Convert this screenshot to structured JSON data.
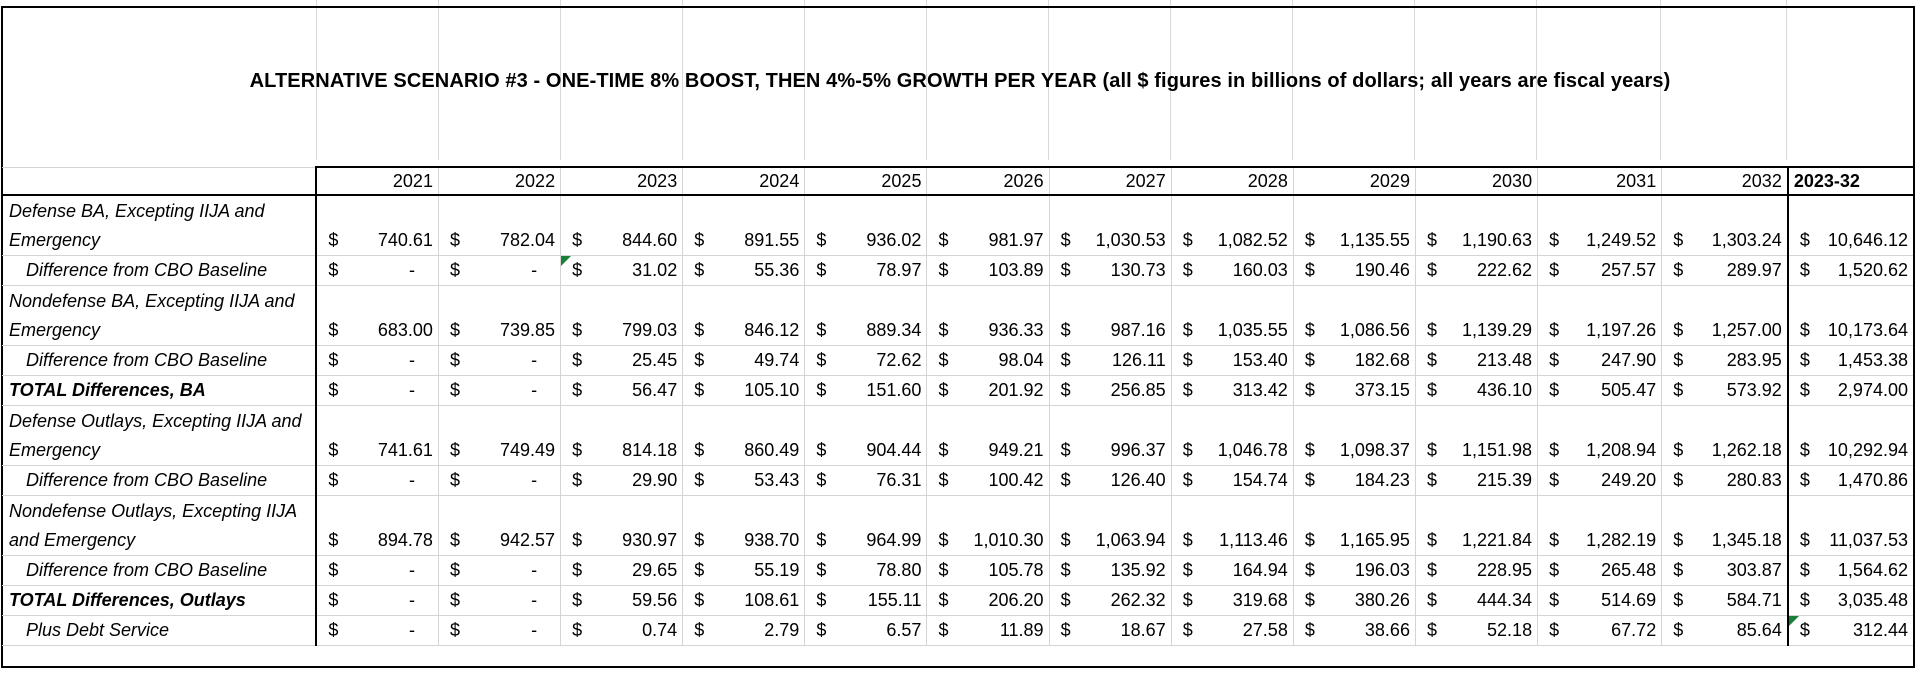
{
  "title": {
    "main": "ALTERNATIVE SCENARIO #3 - ONE-TIME 8% BOOST, THEN 4%-5% GROWTH PER YEAR",
    "note": "(all $ figures in billions of dollars; all years are fiscal years)"
  },
  "columns": [
    "2021",
    "2022",
    "2023",
    "2024",
    "2025",
    "2026",
    "2027",
    "2028",
    "2029",
    "2030",
    "2031",
    "2032",
    "2023-32"
  ],
  "currency_symbol": "$",
  "rows": [
    {
      "label": "Defense BA, Excepting IIJA and Emergency",
      "style": "main",
      "values": [
        "740.61",
        "782.04",
        "844.60",
        "891.55",
        "936.02",
        "981.97",
        "$ 1,030.53",
        "$ 1,082.52",
        "1,135.55",
        "1,190.63",
        "1,249.52",
        "$ 1,303.24",
        "$ 10,646.12"
      ]
    },
    {
      "label": "Difference from CBO Baseline",
      "style": "sub",
      "values": [
        "-",
        "-",
        "31.02",
        "55.36",
        "78.97",
        "103.89",
        "130.73",
        "160.03",
        "190.46",
        "222.62",
        "257.57",
        "289.97",
        "$ 1,520.62"
      ]
    },
    {
      "label": "Nondefense BA, Excepting IIJA and Emergency",
      "style": "main",
      "values": [
        "683.00",
        "739.85",
        "799.03",
        "846.12",
        "889.34",
        "936.33",
        "987.16",
        "$ 1,035.55",
        "1,086.56",
        "1,139.29",
        "1,197.26",
        "$ 1,257.00",
        "$ 10,173.64"
      ]
    },
    {
      "label": "Difference from CBO Baseline",
      "style": "sub",
      "values": [
        "-",
        "-",
        "25.45",
        "49.74",
        "72.62",
        "98.04",
        "126.11",
        "153.40",
        "182.68",
        "213.48",
        "247.90",
        "283.95",
        "$ 1,453.38"
      ]
    },
    {
      "label": "TOTAL Differences, BA",
      "style": "bold",
      "values": [
        "-",
        "-",
        "56.47",
        "105.10",
        "151.60",
        "201.92",
        "256.85",
        "313.42",
        "373.15",
        "436.10",
        "505.47",
        "573.92",
        "$ 2,974.00"
      ]
    },
    {
      "label": "Defense Outlays, Excepting IIJA and Emergency",
      "style": "main",
      "values": [
        "741.61",
        "749.49",
        "814.18",
        "860.49",
        "904.44",
        "949.21",
        "996.37",
        "$ 1,046.78",
        "1,098.37",
        "1,151.98",
        "1,208.94",
        "$ 1,262.18",
        "$ 10,292.94"
      ]
    },
    {
      "label": "Difference from CBO Baseline",
      "style": "sub",
      "values": [
        "-",
        "-",
        "29.90",
        "53.43",
        "76.31",
        "100.42",
        "126.40",
        "154.74",
        "184.23",
        "215.39",
        "249.20",
        "280.83",
        "$ 1,470.86"
      ]
    },
    {
      "label": "Nondefense Outlays, Excepting IIJA and Emergency",
      "style": "main",
      "values": [
        "894.78",
        "942.57",
        "930.97",
        "938.70",
        "964.99",
        "$ 1,010.30",
        "$ 1,063.94",
        "$ 1,113.46",
        "1,165.95",
        "1,221.84",
        "1,282.19",
        "$ 1,345.18",
        "$ 11,037.53"
      ]
    },
    {
      "label": "Difference from CBO Baseline",
      "style": "sub",
      "values": [
        "-",
        "-",
        "29.65",
        "55.19",
        "78.80",
        "105.78",
        "135.92",
        "164.94",
        "196.03",
        "228.95",
        "265.48",
        "303.87",
        "$ 1,564.62"
      ]
    },
    {
      "label": "TOTAL Differences, Outlays",
      "style": "bold",
      "values": [
        "-",
        "-",
        "59.56",
        "108.61",
        "155.11",
        "206.20",
        "262.32",
        "319.68",
        "380.26",
        "444.34",
        "514.69",
        "584.71",
        "$ 3,035.48"
      ]
    },
    {
      "label": "Plus Debt Service",
      "style": "sub",
      "values": [
        "-",
        "-",
        "0.74",
        "2.79",
        "6.57",
        "11.89",
        "18.67",
        "27.58",
        "38.66",
        "52.18",
        "67.72",
        "85.64",
        "$ 312.44"
      ]
    }
  ],
  "comment_markers": {
    "color": "#1a7f37"
  }
}
